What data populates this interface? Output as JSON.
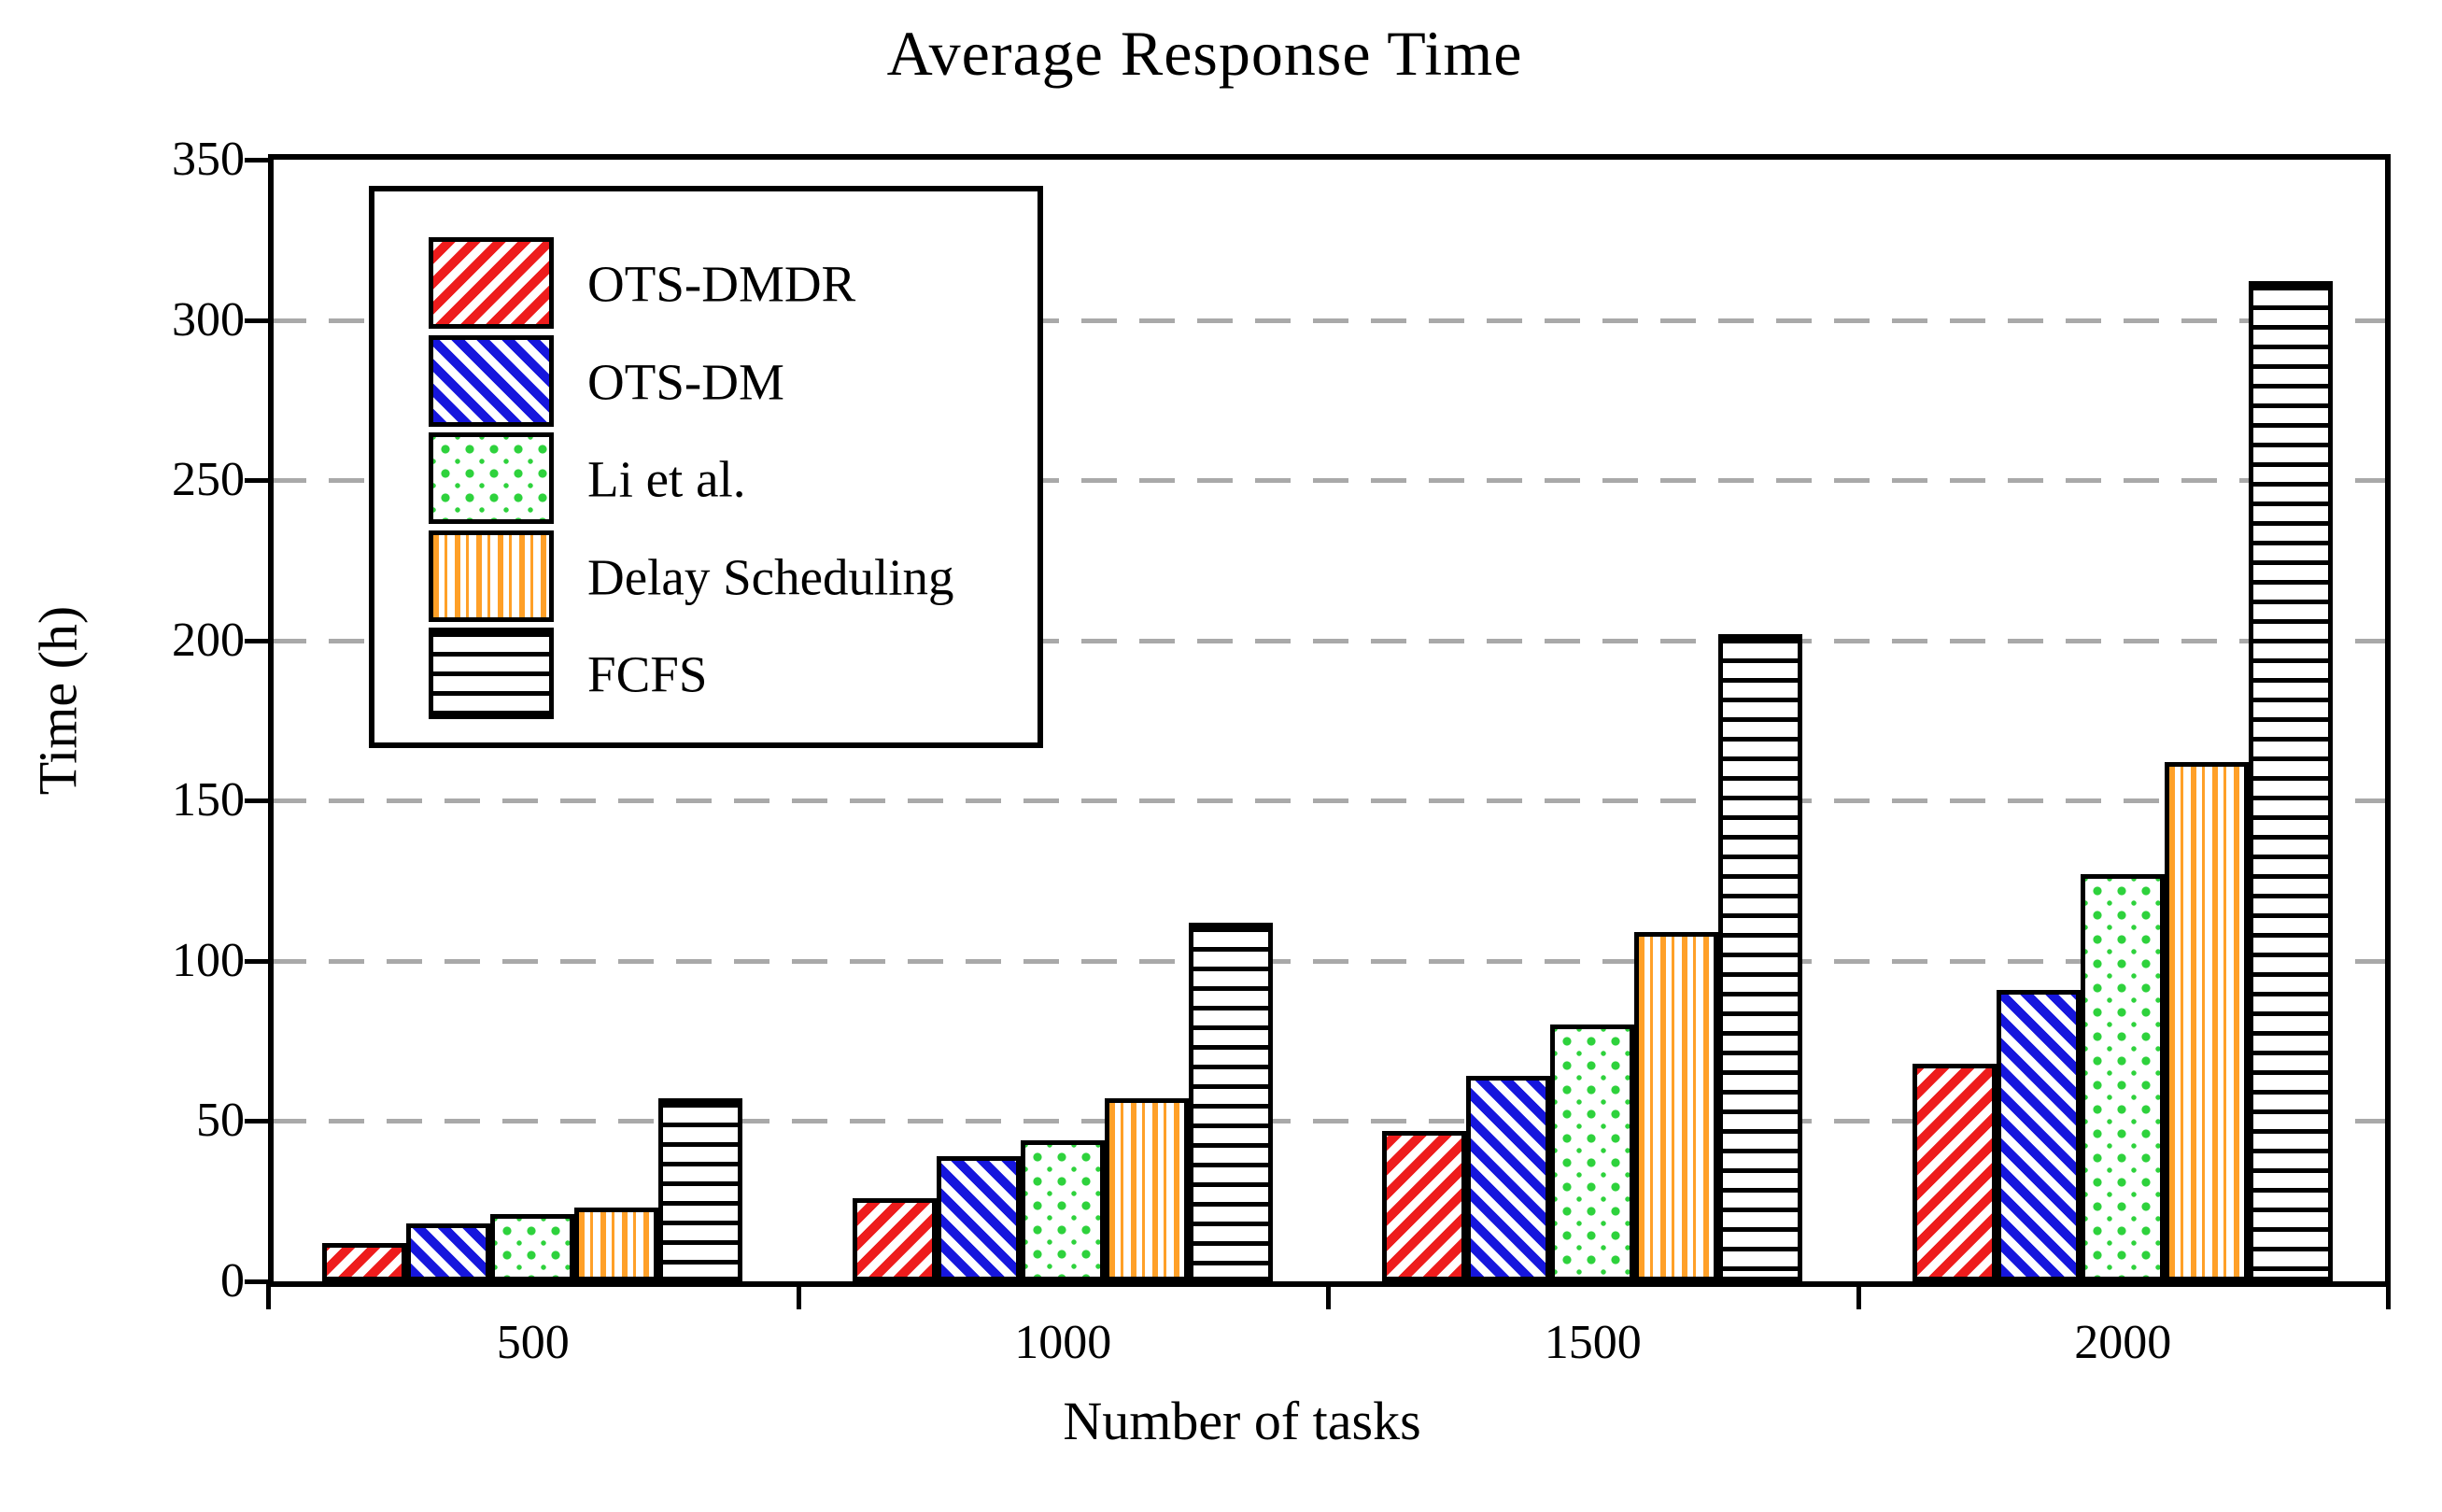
{
  "chart_data": {
    "type": "bar",
    "title": "Average Response Time",
    "xlabel": "Number of tasks",
    "ylabel": "Time (h)",
    "categories": [
      "500",
      "1000",
      "1500",
      "2000"
    ],
    "series": [
      {
        "name": "OTS-DMDR",
        "pattern": "diagonal-up",
        "color": "#ee1c1c",
        "values": [
          12,
          26,
          47,
          68
        ]
      },
      {
        "name": "OTS-DM",
        "pattern": "diagonal-down",
        "color": "#1616dd",
        "values": [
          18,
          39,
          64,
          91
        ]
      },
      {
        "name": "Li et al.",
        "pattern": "dots",
        "color": "#2ed23c",
        "values": [
          21,
          44,
          80,
          127
        ]
      },
      {
        "name": "Delay Scheduling",
        "pattern": "vertical-lines",
        "color": "#ffa028",
        "values": [
          23,
          57,
          109,
          162
        ]
      },
      {
        "name": "FCFS",
        "pattern": "horizontal-lines",
        "color": "#000000",
        "values": [
          57,
          112,
          202,
          312
        ]
      }
    ],
    "ylim": [
      0,
      350
    ],
    "yticks": [
      0,
      50,
      100,
      150,
      200,
      250,
      300,
      350
    ],
    "grid": "horizontal-dashed",
    "gridline_color": "#a9a9a9",
    "legend_position": "upper-left-inside"
  }
}
